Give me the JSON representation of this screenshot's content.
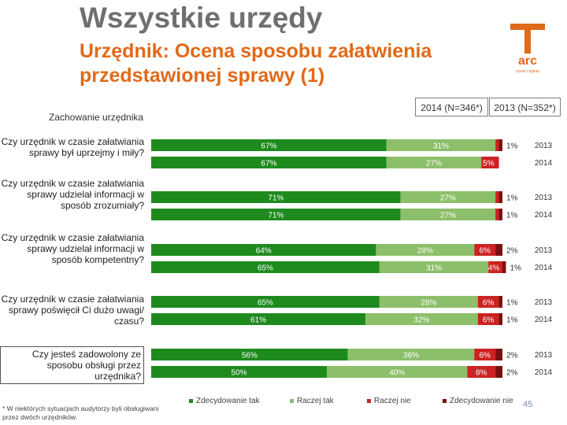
{
  "title": "Wszystkie urzędy",
  "subtitle": "Urzędnik: Ocena sposobu załatwienia przedstawionej sprawy (1)",
  "logo_text": "arc",
  "logo_subtext": "rynek i opinia",
  "section_label": "Zachowanie urzędnika",
  "legend_boxes": [
    "2014 (N=346*)",
    "2013 (N=352*)"
  ],
  "footnote": "* W niektórych sytuacjach audytorzy byli obsługiwani przez dwóch urzędników.",
  "page_number": "45",
  "colors": {
    "zdecydowanie_tak": "#1e8a1e",
    "raczej_tak": "#8cbf6a",
    "raczej_nie": "#cc2222",
    "zdecydowanie_nie": "#7a1010",
    "subtitle": "#e06a1a"
  },
  "chart_data": {
    "type": "bar",
    "orientation": "horizontal",
    "stacked": true,
    "series_names": [
      "Zdecydowanie tak",
      "Raczej tak",
      "Raczej nie",
      "Zdecydowanie nie"
    ],
    "groups": [
      {
        "question": "Czy urzędnik w czasie załatwiania sprawy był uprzejmy i miły?",
        "rows": [
          {
            "year": "2013",
            "values": [
              67,
              31,
              1,
              1
            ],
            "labels": [
              "67%",
              "31%",
              "",
              "1%"
            ]
          },
          {
            "year": "2014",
            "values": [
              67,
              27,
              5,
              0
            ],
            "labels": [
              "67%",
              "27%",
              "5%",
              ""
            ]
          }
        ]
      },
      {
        "question": "Czy urzędnik w czasie załatwiania sprawy udzielał informacji w sposób zrozumiały?",
        "rows": [
          {
            "year": "2013",
            "values": [
              71,
              27,
              1,
              1
            ],
            "labels": [
              "71%",
              "27%",
              "",
              "1%"
            ]
          },
          {
            "year": "2014",
            "values": [
              71,
              27,
              1,
              1
            ],
            "labels": [
              "71%",
              "27%",
              "",
              "1%"
            ]
          }
        ]
      },
      {
        "question": "Czy urzędnik w czasie załatwiania sprawy udzielał informacji w sposób kompetentny?",
        "rows": [
          {
            "year": "2013",
            "values": [
              64,
              28,
              6,
              2
            ],
            "labels": [
              "64%",
              "28%",
              "6%",
              "2%"
            ]
          },
          {
            "year": "2014",
            "values": [
              65,
              31,
              4,
              1
            ],
            "labels": [
              "65%",
              "31%",
              "4%",
              "1%"
            ]
          }
        ]
      },
      {
        "question": "Czy urzędnik w czasie załatwiania sprawy poświęcił Ci dużo uwagi/ czasu?",
        "rows": [
          {
            "year": "2013",
            "values": [
              65,
              28,
              6,
              1
            ],
            "labels": [
              "65%",
              "28%",
              "6%",
              "1%"
            ]
          },
          {
            "year": "2014",
            "values": [
              61,
              32,
              6,
              1
            ],
            "labels": [
              "61%",
              "32%",
              "6%",
              "1%"
            ]
          }
        ]
      },
      {
        "question": "Czy jesteś zadowolony ze sposobu obsługi przez urzędnika?",
        "boxed": true,
        "rows": [
          {
            "year": "2013",
            "values": [
              56,
              36,
              6,
              2
            ],
            "labels": [
              "56%",
              "36%",
              "6%",
              "2%"
            ]
          },
          {
            "year": "2014",
            "values": [
              50,
              40,
              8,
              2
            ],
            "labels": [
              "50%",
              "40%",
              "8%",
              "2%"
            ]
          }
        ]
      }
    ],
    "legend_position": "bottom",
    "xlim": [
      0,
      100
    ],
    "grid": false
  }
}
